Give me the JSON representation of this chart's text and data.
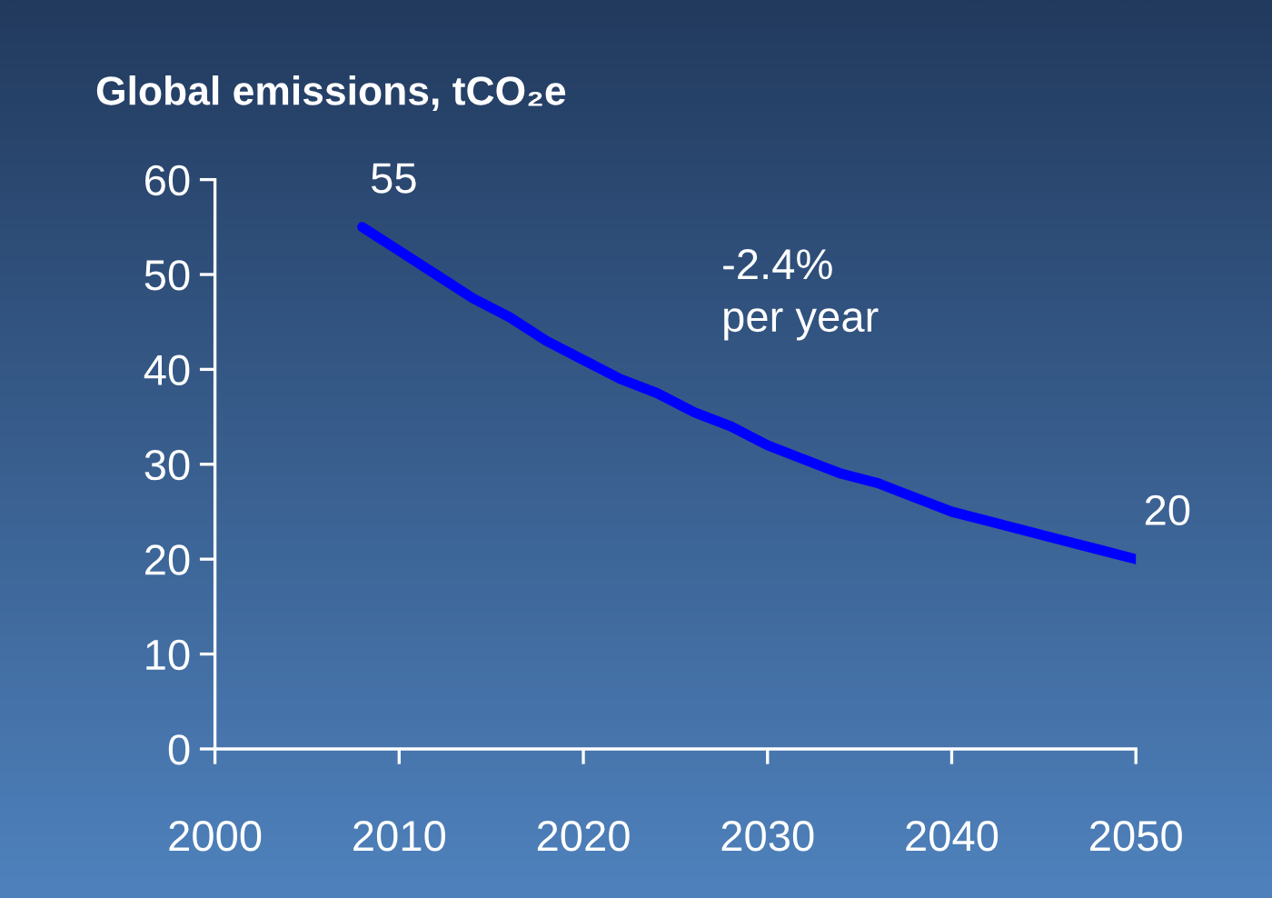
{
  "chart_data": {
    "type": "line",
    "title": "Global emissions, tCO₂e",
    "x": [
      2008,
      2010,
      2012,
      2014,
      2016,
      2018,
      2020,
      2022,
      2024,
      2026,
      2028,
      2030,
      2032,
      2034,
      2036,
      2038,
      2040,
      2042,
      2044,
      2046,
      2048,
      2050
    ],
    "series": [
      {
        "color": "#0000ff",
        "values": [
          55,
          52.5,
          50,
          47.5,
          45.5,
          43,
          41,
          39,
          37.5,
          35.5,
          34,
          32,
          30.5,
          29,
          28,
          26.5,
          25,
          24,
          23,
          22,
          21,
          20
        ]
      }
    ],
    "xlim": [
      2000,
      2050
    ],
    "xticks": [
      2000,
      2010,
      2020,
      2030,
      2040,
      2050
    ],
    "ylim": [
      0,
      60
    ],
    "yticks": [
      0,
      10,
      20,
      30,
      40,
      50,
      60
    ],
    "grid": false,
    "legend": false,
    "marker": "none",
    "line_style": "solid",
    "annotations": [
      {
        "text": "55",
        "x": 2008,
        "y": 55
      },
      {
        "text": "20",
        "x": 2050,
        "y": 20
      },
      "-2.4%\nper year"
    ]
  }
}
